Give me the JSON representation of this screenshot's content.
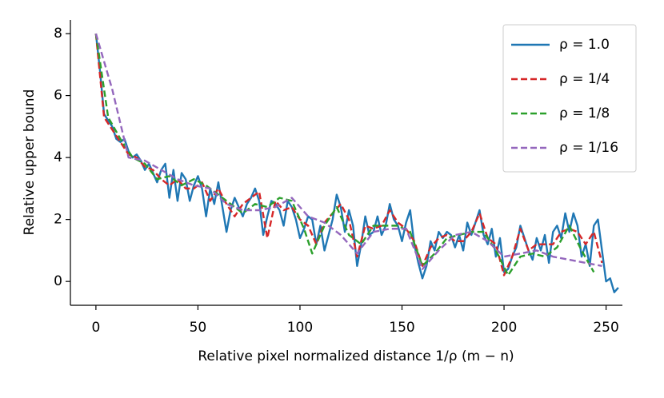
{
  "chart_data": {
    "type": "line",
    "xlabel": "Relative pixel normalized distance 1/ρ (m − n)",
    "ylabel": "Relative upper bound",
    "xlim": [
      -12.5,
      258
    ],
    "ylim": [
      -0.77,
      8.44
    ],
    "xticks": [
      0,
      50,
      100,
      150,
      200,
      250
    ],
    "yticks": [
      0,
      2,
      4,
      6,
      8
    ],
    "legend": "upper right",
    "series": [
      {
        "name": "ρ = 1.0",
        "color": "#1f77b4",
        "linestyle": "solid",
        "x": [
          0,
          2,
          4,
          6,
          8,
          10,
          12,
          14,
          16,
          18,
          20,
          22,
          24,
          26,
          28,
          30,
          32,
          34,
          36,
          38,
          40,
          42,
          44,
          46,
          48,
          50,
          52,
          54,
          56,
          58,
          60,
          62,
          64,
          66,
          68,
          70,
          72,
          74,
          76,
          78,
          80,
          82,
          84,
          86,
          88,
          90,
          92,
          94,
          96,
          98,
          100,
          102,
          104,
          106,
          108,
          110,
          112,
          114,
          116,
          118,
          120,
          122,
          124,
          126,
          128,
          130,
          132,
          134,
          136,
          138,
          140,
          142,
          144,
          146,
          148,
          150,
          152,
          154,
          156,
          158,
          160,
          162,
          164,
          166,
          168,
          170,
          172,
          174,
          176,
          178,
          180,
          182,
          184,
          186,
          188,
          190,
          192,
          194,
          196,
          198,
          200,
          202,
          204,
          206,
          208,
          210,
          212,
          214,
          216,
          218,
          220,
          222,
          224,
          226,
          228,
          230,
          232,
          234,
          236,
          238,
          240,
          242,
          244,
          246,
          248,
          250,
          252,
          254,
          256
        ],
        "values": [
          8,
          6.8,
          5.4,
          5.2,
          5.0,
          4.6,
          4.5,
          4.6,
          4.2,
          4.0,
          4.1,
          3.9,
          3.6,
          3.8,
          3.5,
          3.2,
          3.6,
          3.8,
          2.7,
          3.6,
          2.6,
          3.5,
          3.3,
          2.6,
          3.1,
          3.4,
          3.0,
          2.1,
          3.0,
          2.5,
          3.2,
          2.4,
          1.6,
          2.3,
          2.7,
          2.4,
          2.1,
          2.5,
          2.7,
          3.0,
          2.6,
          1.5,
          2.1,
          2.6,
          2.5,
          2.3,
          1.8,
          2.6,
          2.4,
          2.0,
          1.4,
          1.7,
          2.1,
          2.0,
          1.2,
          1.8,
          1.0,
          1.5,
          2.0,
          2.8,
          2.4,
          1.6,
          2.3,
          1.8,
          0.5,
          1.2,
          2.1,
          1.5,
          1.6,
          2.1,
          1.5,
          1.8,
          2.5,
          2.0,
          1.8,
          1.3,
          1.9,
          2.3,
          1.2,
          0.6,
          0.1,
          0.5,
          1.3,
          1.0,
          1.6,
          1.4,
          1.6,
          1.5,
          1.1,
          1.5,
          1.0,
          1.9,
          1.5,
          1.9,
          2.3,
          1.5,
          1.2,
          1.7,
          0.8,
          1.4,
          0.3,
          0.4,
          0.8,
          1.1,
          1.8,
          1.4,
          1.0,
          0.7,
          1.4,
          1.0,
          1.5,
          0.6,
          1.6,
          1.8,
          1.4,
          2.2,
          1.6,
          2.2,
          1.8,
          0.8,
          1.2,
          0.5,
          1.8,
          2.0,
          1.0,
          0.0,
          0.1,
          -0.35,
          -0.2
        ]
      },
      {
        "name": "ρ = 1/4",
        "color": "#d62728",
        "linestyle": "dashed",
        "x": [
          0,
          4,
          8,
          12,
          16,
          20,
          24,
          28,
          32,
          36,
          40,
          44,
          48,
          52,
          56,
          60,
          64,
          68,
          72,
          76,
          80,
          84,
          88,
          92,
          96,
          100,
          104,
          108,
          112,
          116,
          120,
          124,
          128,
          132,
          136,
          140,
          144,
          148,
          152,
          156,
          160,
          164,
          168,
          172,
          176,
          180,
          184,
          188,
          192,
          196,
          200,
          204,
          208,
          212,
          216,
          220,
          224,
          228,
          232,
          236,
          240,
          244,
          248
        ],
        "values": [
          8,
          5.3,
          4.9,
          4.5,
          4.1,
          4.0,
          3.7,
          3.6,
          3.3,
          3.1,
          3.3,
          3.0,
          3.0,
          3.2,
          2.6,
          3.0,
          2.5,
          2.1,
          2.5,
          2.7,
          2.9,
          1.4,
          2.6,
          2.3,
          2.4,
          2.0,
          1.8,
          1.2,
          1.9,
          2.2,
          2.5,
          2.0,
          0.8,
          1.8,
          1.7,
          1.8,
          2.3,
          1.9,
          1.7,
          1.3,
          0.5,
          1.1,
          1.4,
          1.5,
          1.3,
          1.3,
          1.6,
          2.2,
          1.4,
          1.2,
          0.2,
          0.8,
          1.7,
          1.0,
          1.2,
          1.2,
          1.2,
          1.6,
          1.7,
          1.6,
          1.2,
          1.6,
          0.6
        ]
      },
      {
        "name": "ρ = 1/8",
        "color": "#2ca02c",
        "linestyle": "dashed",
        "x": [
          0,
          6,
          12,
          18,
          24,
          30,
          36,
          42,
          48,
          54,
          60,
          66,
          72,
          78,
          84,
          90,
          96,
          102,
          106,
          112,
          118,
          124,
          130,
          136,
          142,
          148,
          154,
          160,
          166,
          172,
          178,
          184,
          190,
          196,
          202,
          208,
          214,
          220,
          226,
          232,
          238,
          244
        ],
        "values": [
          8,
          5.3,
          4.6,
          4.0,
          3.8,
          3.3,
          3.4,
          3.1,
          3.3,
          3.1,
          2.8,
          2.5,
          2.2,
          2.5,
          2.4,
          2.7,
          2.6,
          1.7,
          0.9,
          1.8,
          2.4,
          1.5,
          1.2,
          1.8,
          1.8,
          1.8,
          1.6,
          0.5,
          0.9,
          1.4,
          1.5,
          1.6,
          1.6,
          1.0,
          0.2,
          0.8,
          0.9,
          0.8,
          1.1,
          1.8,
          1.0,
          0.3
        ]
      },
      {
        "name": "ρ = 1/16",
        "color": "#9467bd",
        "linestyle": "dashed",
        "x": [
          0,
          8,
          16,
          24,
          32,
          40,
          48,
          56,
          64,
          72,
          80,
          88,
          96,
          104,
          112,
          120,
          128,
          136,
          144,
          152,
          160,
          168,
          176,
          184,
          192,
          200,
          208,
          216,
          224,
          232,
          240,
          248
        ],
        "values": [
          8,
          6.2,
          4.0,
          3.9,
          3.6,
          3.3,
          3.1,
          3.0,
          2.5,
          2.3,
          2.3,
          2.4,
          2.7,
          2.1,
          1.9,
          1.5,
          0.9,
          1.6,
          1.7,
          1.7,
          0.4,
          1.0,
          1.5,
          1.6,
          1.3,
          0.8,
          0.9,
          1.0,
          0.8,
          0.7,
          0.6,
          0.5
        ]
      }
    ]
  }
}
